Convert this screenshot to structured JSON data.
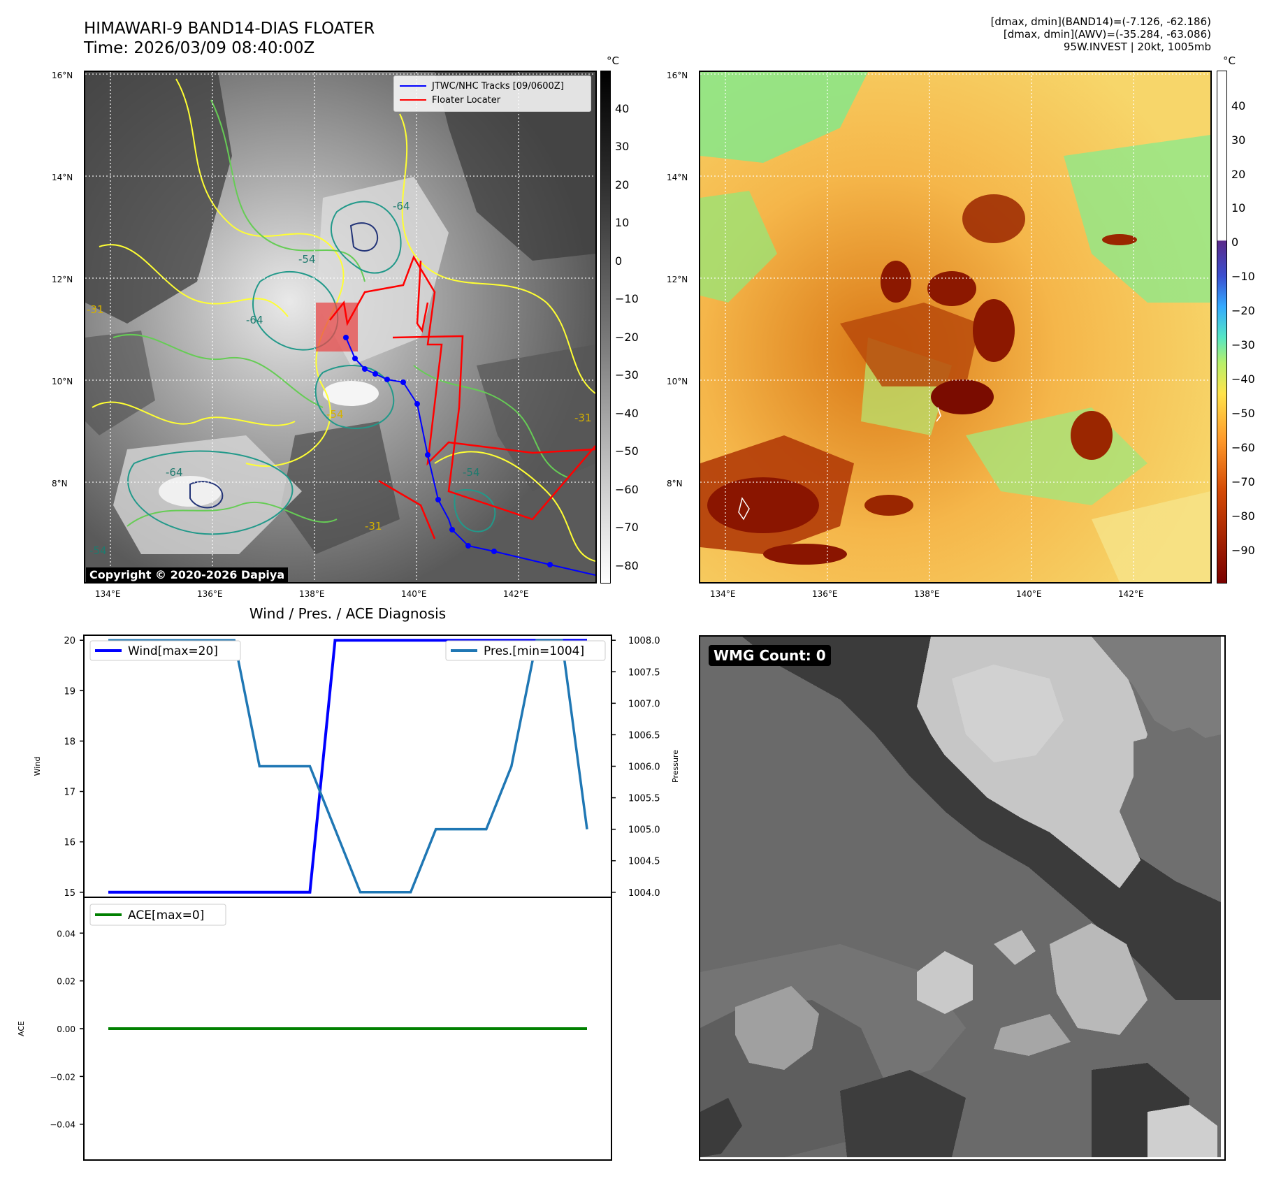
{
  "header": {
    "title_line1": "HIMAWARI-9 BAND14-DIAS FLOATER",
    "title_line2": "Time: 2026/03/09 08:40:00Z",
    "info_line1": "[dmax, dmin](BAND14)=(-7.126, -62.186)",
    "info_line2": "[dmax, dmin](AWV)=(-35.284, -63.086)",
    "info_line3": "95W.INVEST | 20kt, 1005mb"
  },
  "map": {
    "lon_ticks": [
      "134°E",
      "136°E",
      "138°E",
      "140°E",
      "142°E"
    ],
    "lat_ticks": [
      "16°N",
      "14°N",
      "12°N",
      "10°N",
      "8°N"
    ],
    "legend": {
      "tracks": "JTWC/NHC Tracks [09/0600Z]",
      "floater": "Floater Locater"
    },
    "copyright": "Copyright © 2020-2026 Dapiya",
    "contour_labels": [
      "-54",
      "-64",
      "-64",
      "-64",
      "-54",
      "-54",
      "-31",
      "-31",
      "-31",
      "-54"
    ],
    "colors": {
      "tracks": "#0000ff",
      "floater": "#ff0000",
      "contour_yellow": "#ffff33",
      "contour_green": "#66cc55",
      "contour_teal": "#22998a",
      "contour_navy": "#223377"
    }
  },
  "colorbar_left": {
    "unit": "°C",
    "ticks": [
      "40",
      "30",
      "20",
      "10",
      "0",
      "−10",
      "−20",
      "−30",
      "−40",
      "−50",
      "−60",
      "−70",
      "−80"
    ]
  },
  "colorbar_right": {
    "unit": "°C",
    "ticks": [
      "40",
      "30",
      "20",
      "10",
      "0",
      "−10",
      "−20",
      "−30",
      "−40",
      "−50",
      "−60",
      "−70",
      "−80",
      "−90"
    ]
  },
  "diagnosis": {
    "title": "Wind / Pres. / ACE Diagnosis"
  },
  "wmg": {
    "label": "WMG Count: 0"
  },
  "chart_data": [
    {
      "type": "line",
      "title": "Wind / Pres. / ACE Diagnosis",
      "ylabel": "Wind",
      "y2label": "Pressure",
      "ylim": [
        14.9,
        20.1
      ],
      "y2lim": [
        1003.92,
        1008.08
      ],
      "yticks": [
        "15",
        "16",
        "17",
        "18",
        "19",
        "20"
      ],
      "y2ticks": [
        "1004.0",
        "1004.5",
        "1005.0",
        "1005.5",
        "1006.0",
        "1006.5",
        "1007.0",
        "1007.5",
        "1008.0"
      ],
      "x": [
        0,
        1,
        2,
        3,
        4,
        5,
        6,
        7,
        8,
        9,
        10,
        11,
        12,
        13,
        14,
        15,
        16,
        17,
        18,
        19
      ],
      "series": [
        {
          "name": "Wind[max=20]",
          "axis": "left",
          "color": "#0000ff",
          "values": [
            15,
            15,
            15,
            15,
            15,
            15,
            15,
            15,
            15,
            20,
            20,
            20,
            20,
            20,
            20,
            20,
            20,
            20,
            20,
            20
          ]
        },
        {
          "name": "Pres.[min=1004]",
          "axis": "right",
          "color": "#1f77b4",
          "values": [
            1008,
            1008,
            1008,
            1008,
            1008,
            1008,
            1006,
            1006,
            1006,
            1005,
            1004,
            1004,
            1004,
            1005,
            1005,
            1005,
            1006,
            1008,
            1008,
            1005
          ]
        }
      ]
    },
    {
      "type": "line",
      "ylabel": "ACE",
      "ylim": [
        -0.055,
        0.055
      ],
      "yticks": [
        "0.04",
        "0.02",
        "0.00",
        "−0.02",
        "−0.04"
      ],
      "x": [
        0,
        1,
        2,
        3,
        4,
        5,
        6,
        7,
        8,
        9,
        10,
        11,
        12,
        13,
        14,
        15,
        16,
        17,
        18,
        19
      ],
      "series": [
        {
          "name": "ACE[max=0]",
          "color": "#008000",
          "values": [
            0,
            0,
            0,
            0,
            0,
            0,
            0,
            0,
            0,
            0,
            0,
            0,
            0,
            0,
            0,
            0,
            0,
            0,
            0,
            0
          ]
        }
      ]
    }
  ]
}
